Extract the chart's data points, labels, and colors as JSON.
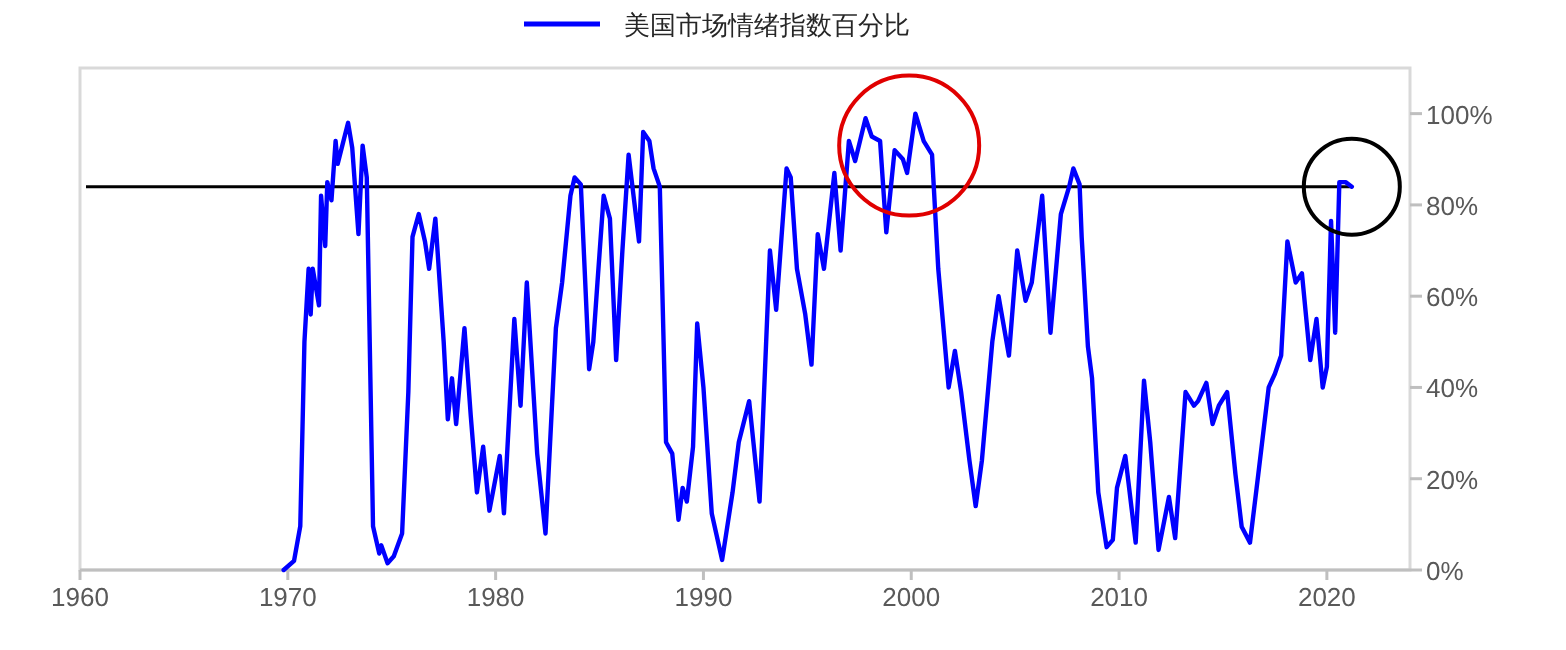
{
  "chart_data": {
    "type": "line",
    "legend": "top",
    "grid": false,
    "line_style": "solid",
    "marker": "none",
    "xlim": [
      1960,
      2024
    ],
    "xticks": [
      1960,
      1970,
      1980,
      1990,
      2000,
      2010,
      2020
    ],
    "ylim": [
      0,
      110
    ],
    "yticks": [
      {
        "value": 0,
        "label": "0%"
      },
      {
        "value": 20,
        "label": "20%"
      },
      {
        "value": 40,
        "label": "40%"
      },
      {
        "value": 60,
        "label": "60%"
      },
      {
        "value": 80,
        "label": "80%"
      },
      {
        "value": 100,
        "label": "100%"
      }
    ],
    "ref_lines": [
      {
        "axis": "y",
        "value": 84,
        "color": "#000000"
      }
    ],
    "x": [
      1969.8,
      1970.3,
      1970.6,
      1970.8,
      1971.0,
      1971.1,
      1971.2,
      1971.5,
      1971.6,
      1971.8,
      1971.9,
      1972.1,
      1972.3,
      1972.4,
      1972.9,
      1973.1,
      1973.4,
      1973.6,
      1973.8,
      1974.1,
      1974.4,
      1974.5,
      1974.8,
      1975.1,
      1975.5,
      1975.8,
      1976.0,
      1976.3,
      1976.6,
      1976.8,
      1977.1,
      1977.5,
      1977.7,
      1977.9,
      1978.1,
      1978.5,
      1978.8,
      1979.1,
      1979.4,
      1979.7,
      1980.2,
      1980.4,
      1980.9,
      1981.2,
      1981.5,
      1982.0,
      1982.4,
      1982.9,
      1983.2,
      1983.6,
      1983.8,
      1984.1,
      1984.5,
      1984.7,
      1984.9,
      1985.2,
      1985.5,
      1985.8,
      1986.1,
      1986.4,
      1986.9,
      1987.1,
      1987.4,
      1987.6,
      1987.9,
      1988.2,
      1988.5,
      1988.8,
      1989.0,
      1989.2,
      1989.5,
      1989.7,
      1990.0,
      1990.4,
      1990.9,
      1991.4,
      1991.7,
      1992.2,
      1992.7,
      1993.2,
      1993.5,
      1994.0,
      1994.2,
      1994.5,
      1994.9,
      1995.2,
      1995.5,
      1995.8,
      1996.3,
      1996.6,
      1997.0,
      1997.3,
      1997.8,
      1998.1,
      1998.5,
      1998.8,
      1999.2,
      1999.6,
      1999.8,
      2000.2,
      2000.6,
      2001.0,
      2001.3,
      2001.8,
      2002.1,
      2002.4,
      2002.8,
      2003.1,
      2003.4,
      2003.9,
      2004.2,
      2004.7,
      2005.1,
      2005.5,
      2005.8,
      2006.3,
      2006.7,
      2007.2,
      2007.6,
      2007.8,
      2008.1,
      2008.2,
      2008.5,
      2008.7,
      2009.0,
      2009.4,
      2009.7,
      2009.9,
      2010.3,
      2010.8,
      2011.2,
      2011.5,
      2011.9,
      2012.4,
      2012.7,
      2013.2,
      2013.6,
      2013.8,
      2014.2,
      2014.5,
      2014.8,
      2015.2,
      2015.6,
      2015.9,
      2016.3,
      2016.7,
      2017.2,
      2017.5,
      2017.8,
      2018.1,
      2018.5,
      2018.8,
      2019.2,
      2019.5,
      2019.8,
      2020.0,
      2020.2,
      2020.4,
      2020.6,
      2020.9,
      2021.2
    ],
    "series": [
      {
        "name": "美国市场情绪指数百分比",
        "color": "#0000ff",
        "values": [
          0,
          2,
          9.6,
          50,
          66,
          56,
          66,
          58,
          82,
          71,
          85,
          81,
          94,
          89,
          98,
          92.5,
          73.6,
          93,
          86,
          9.6,
          3.6,
          5.4,
          1.5,
          3,
          8,
          39,
          73,
          78,
          72,
          66,
          77,
          50,
          33,
          42,
          32,
          53,
          34,
          17,
          27,
          13,
          25,
          12.4,
          55,
          36,
          63,
          25.5,
          8,
          53,
          63,
          82,
          86,
          84.5,
          44,
          50,
          63,
          82,
          77,
          46,
          70,
          91,
          72,
          96,
          94,
          88,
          84,
          28,
          25.5,
          11,
          18,
          15,
          27,
          54,
          40,
          12.4,
          2.2,
          17,
          28,
          37,
          15,
          70,
          57,
          88,
          86,
          66,
          56,
          45,
          73.6,
          66,
          87,
          70,
          94,
          89.6,
          99,
          95,
          94,
          74,
          92,
          90,
          87,
          100,
          94,
          91,
          66,
          40,
          48,
          39,
          24,
          14,
          24,
          50,
          60,
          47,
          70,
          59,
          63,
          82,
          52,
          78,
          84,
          88,
          84.5,
          73,
          49,
          42,
          17,
          5,
          6.6,
          18,
          25,
          6,
          41.5,
          28,
          4.4,
          16,
          7,
          39,
          36,
          37,
          41,
          32,
          36,
          39,
          21,
          9.5,
          6,
          21,
          40,
          43,
          47,
          72,
          63,
          65,
          46,
          55,
          40,
          44.5,
          76.5,
          52,
          85,
          85,
          84
        ]
      }
    ]
  }
}
